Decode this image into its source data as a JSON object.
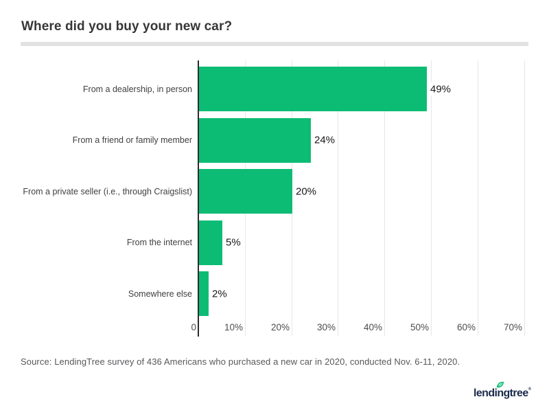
{
  "header": {
    "title": "Where did you buy your new car?"
  },
  "chart_data": {
    "type": "bar",
    "orientation": "horizontal",
    "title": "Where did you buy your new car?",
    "categories": [
      "From a dealership, in person",
      "From a friend or family member",
      "From a private seller (i.e., through Craigslist)",
      "From the internet",
      "Somewhere else"
    ],
    "values": [
      49,
      24,
      20,
      5,
      2
    ],
    "value_labels": [
      "49%",
      "24%",
      "20%",
      "5%",
      "2%"
    ],
    "x_axis": {
      "ticks": [
        0,
        10,
        20,
        30,
        40,
        50,
        60,
        70
      ],
      "tick_labels": [
        "0",
        "10%",
        "20%",
        "30%",
        "40%",
        "50%",
        "60%",
        "70%"
      ],
      "min": 0,
      "max": 70,
      "unit": "percent"
    },
    "grid": "vertical",
    "legend": "none",
    "bar_color": "#0dbc74"
  },
  "footer": {
    "source": "Source: LendingTree survey of 436 Americans who purchased a new car in 2020, conducted Nov. 6-11, 2020.",
    "logo": {
      "text": "lendingtree",
      "trademark": "®"
    }
  },
  "colors": {
    "accent_green": "#0dbc74",
    "axis_line": "#2b2b2b",
    "gridline": "#e7e7e7",
    "divider": "#e2e2e2",
    "title_text": "#373737",
    "category_text": "#3f3f3f",
    "tick_text": "#4c4c4c",
    "source_text": "#56575a",
    "logo_navy": "#1b2b4c",
    "logo_leaf_green": "#00b96e"
  }
}
